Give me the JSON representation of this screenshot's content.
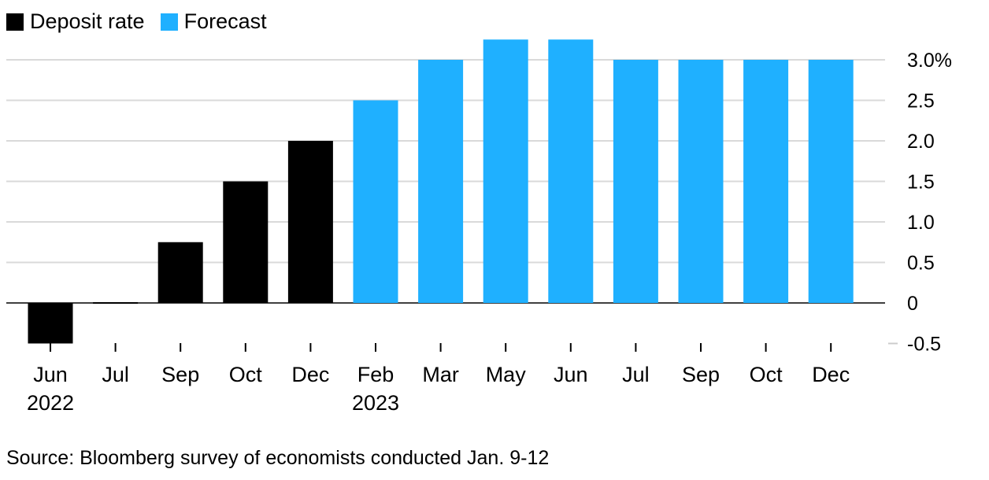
{
  "chart_data": {
    "type": "bar",
    "categories": [
      "Jun",
      "Jul",
      "Sep",
      "Oct",
      "Dec",
      "Feb",
      "Mar",
      "May",
      "Jun",
      "Jul",
      "Sep",
      "Oct",
      "Dec"
    ],
    "year_labels": [
      "2022",
      "",
      "",
      "",
      "",
      "2023",
      "",
      "",
      "",
      "",
      "",
      "",
      ""
    ],
    "series": [
      {
        "name": "Deposit rate",
        "color": "#000000",
        "values": [
          -0.5,
          0.0,
          0.75,
          1.5,
          2.0,
          null,
          null,
          null,
          null,
          null,
          null,
          null,
          null
        ]
      },
      {
        "name": "Forecast",
        "color": "#1fb0ff",
        "values": [
          null,
          null,
          null,
          null,
          null,
          2.5,
          3.0,
          3.25,
          3.25,
          3.0,
          3.0,
          3.0,
          3.0
        ]
      }
    ],
    "yticks": [
      -0.5,
      0,
      0.5,
      1.0,
      1.5,
      2.0,
      2.5,
      3.0
    ],
    "ytick_labels": [
      "-0.5",
      "0",
      "0.5",
      "1.0",
      "1.5",
      "2.0",
      "2.5",
      "3.0%"
    ],
    "ylim": [
      -0.5,
      3.25
    ],
    "title": "",
    "xlabel": "",
    "ylabel": "",
    "grid": true,
    "legend_position": "top-left"
  },
  "source": "Source: Bloomberg survey of economists conducted Jan. 9-12"
}
